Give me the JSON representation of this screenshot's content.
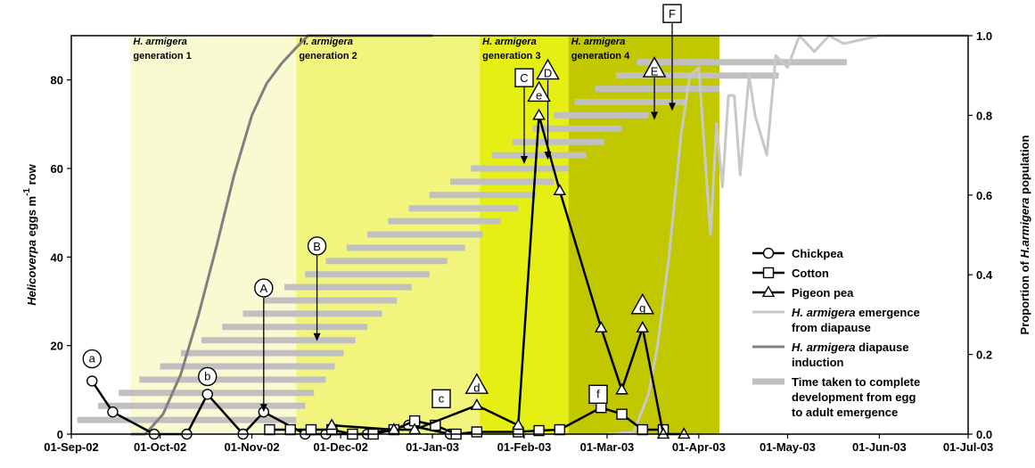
{
  "chart_data": {
    "type": "line",
    "x_axis": {
      "type": "date",
      "range": [
        "2002-09-01",
        "2003-07-01"
      ],
      "ticks": [
        "01-Sep-02",
        "01-Oct-02",
        "01-Nov-02",
        "01-Dec-02",
        "01-Jan-03",
        "01-Feb-03",
        "01-Mar-03",
        "01-Apr-03",
        "01-May-03",
        "01-Jun-03",
        "01-Jul-03"
      ]
    },
    "y_left": {
      "label_main": "Helicoverpa",
      "label_rest": " eggs m",
      "label_sup": "-1",
      "label_end": " row",
      "range": [
        0,
        90
      ],
      "ticks": [
        "0",
        "20",
        "40",
        "60",
        "80"
      ]
    },
    "y_right": {
      "label_pre": "Proportion of ",
      "label_italic": "H.armigera",
      "label_post": " population",
      "range": [
        0,
        1.0
      ],
      "ticks": [
        "0.0",
        "0.2",
        "0.4",
        "0.6",
        "0.8",
        "1.0"
      ]
    },
    "generations": [
      {
        "species": "H. armigera",
        "label": "generation 1",
        "start": "2002-09-21",
        "end": "2002-11-16",
        "color": "#fafad2"
      },
      {
        "species": "H. armigera",
        "label": "generation 2",
        "start": "2002-11-16",
        "end": "2003-01-17",
        "color": "#f1f57e"
      },
      {
        "species": "H. armigera",
        "label": "generation 3",
        "start": "2003-01-17",
        "end": "2003-02-16",
        "color": "#e6ef14"
      },
      {
        "species": "H. armigera",
        "label": "generation 4",
        "start": "2003-02-16",
        "end": "2003-04-08",
        "color": "#c2c800"
      }
    ],
    "series": [
      {
        "name": "Chickpea",
        "marker": "circle",
        "color": "#000000",
        "points": [
          [
            "2002-09-08",
            12
          ],
          [
            "2002-09-15",
            5
          ],
          [
            "2002-09-29",
            0
          ],
          [
            "2002-10-10",
            0
          ],
          [
            "2002-10-17",
            9
          ],
          [
            "2002-10-29",
            0
          ],
          [
            "2002-11-05",
            5
          ],
          [
            "2002-11-19",
            0
          ],
          [
            "2002-11-26",
            0
          ],
          [
            "2002-12-10",
            0
          ],
          [
            "2002-12-24",
            2
          ],
          [
            "2003-01-07",
            0
          ]
        ]
      },
      {
        "name": "Cotton",
        "marker": "square",
        "color": "#000000",
        "points": [
          [
            "2002-11-07",
            1
          ],
          [
            "2002-11-14",
            1
          ],
          [
            "2002-11-21",
            1
          ],
          [
            "2002-11-28",
            1
          ],
          [
            "2002-12-05",
            0
          ],
          [
            "2002-12-12",
            0
          ],
          [
            "2002-12-19",
            1
          ],
          [
            "2002-12-26",
            3
          ],
          [
            "2003-01-02",
            2
          ],
          [
            "2003-01-09",
            0
          ],
          [
            "2003-01-16",
            0.5
          ],
          [
            "2003-01-30",
            0.5
          ],
          [
            "2003-02-06",
            0.8
          ],
          [
            "2003-02-13",
            1
          ],
          [
            "2003-02-27",
            6
          ],
          [
            "2003-03-06",
            4.5
          ],
          [
            "2003-03-13",
            1
          ],
          [
            "2003-03-20",
            1
          ]
        ]
      },
      {
        "name": "Pigeon pea",
        "marker": "triangle",
        "color": "#000000",
        "points": [
          [
            "2002-11-28",
            2
          ],
          [
            "2002-12-19",
            1
          ],
          [
            "2002-12-26",
            1
          ],
          [
            "2003-01-16",
            6.5
          ],
          [
            "2003-01-30",
            2
          ],
          [
            "2003-02-06",
            72
          ],
          [
            "2003-02-13",
            55
          ],
          [
            "2003-02-27",
            24
          ],
          [
            "2003-03-06",
            10
          ],
          [
            "2003-03-13",
            24
          ],
          [
            "2003-03-20",
            0
          ],
          [
            "2003-03-27",
            0
          ]
        ]
      }
    ],
    "proportion_series": [
      {
        "name": "H. armigera emergence from diapause",
        "color": "#c8c8c8",
        "points": [
          [
            "2003-03-01",
            0
          ],
          [
            "2003-03-10",
            0.005
          ],
          [
            "2003-03-15",
            0.1
          ],
          [
            "2003-03-18",
            0.22
          ],
          [
            "2003-03-22",
            0.45
          ],
          [
            "2003-03-26",
            0.75
          ],
          [
            "2003-03-29",
            0.9
          ],
          [
            "2003-04-01",
            0.92
          ],
          [
            "2003-04-04",
            0.6
          ],
          [
            "2003-04-05",
            0.5
          ],
          [
            "2003-04-07",
            0.78
          ],
          [
            "2003-04-09",
            0.62
          ],
          [
            "2003-04-11",
            0.85
          ],
          [
            "2003-04-13",
            0.85
          ],
          [
            "2003-04-15",
            0.65
          ],
          [
            "2003-04-18",
            0.9
          ],
          [
            "2003-04-20",
            0.8
          ],
          [
            "2003-04-24",
            0.7
          ],
          [
            "2003-04-27",
            0.95
          ],
          [
            "2003-05-01",
            0.92
          ],
          [
            "2003-05-05",
            1.0
          ],
          [
            "2003-05-10",
            0.96
          ],
          [
            "2003-05-15",
            1.0
          ],
          [
            "2003-05-20",
            0.98
          ],
          [
            "2003-06-01",
            1.0
          ],
          [
            "2003-07-01",
            1.0
          ]
        ]
      },
      {
        "name": "H. armigera diapause induction",
        "color": "#808080",
        "points": [
          [
            "2002-09-21",
            0
          ],
          [
            "2002-09-26",
            0
          ],
          [
            "2002-10-02",
            0.05
          ],
          [
            "2002-10-08",
            0.15
          ],
          [
            "2002-10-14",
            0.3
          ],
          [
            "2002-10-20",
            0.47
          ],
          [
            "2002-10-26",
            0.65
          ],
          [
            "2002-11-01",
            0.8
          ],
          [
            "2002-11-06",
            0.88
          ],
          [
            "2002-11-11",
            0.93
          ],
          [
            "2002-11-16",
            0.97
          ],
          [
            "2002-11-20",
            1.0
          ],
          [
            "2003-01-01",
            1.0
          ]
        ]
      }
    ],
    "development_bars": {
      "name": "Time taken to complete development from egg to adult emergence",
      "color": "#c0c0c0",
      "bars": [
        {
          "start": "2002-09-03",
          "end": "2002-11-16",
          "y": 3.2
        },
        {
          "start": "2002-09-10",
          "end": "2002-11-19",
          "y": 6.4
        },
        {
          "start": "2002-09-17",
          "end": "2002-11-22",
          "y": 9.3
        },
        {
          "start": "2002-09-24",
          "end": "2002-11-26",
          "y": 12.3
        },
        {
          "start": "2002-10-01",
          "end": "2002-11-29",
          "y": 15.3
        },
        {
          "start": "2002-10-08",
          "end": "2002-12-02",
          "y": 18.3
        },
        {
          "start": "2002-10-15",
          "end": "2002-12-06",
          "y": 21.2
        },
        {
          "start": "2002-10-22",
          "end": "2002-12-10",
          "y": 24.2
        },
        {
          "start": "2002-10-29",
          "end": "2002-12-15",
          "y": 27.2
        },
        {
          "start": "2002-11-05",
          "end": "2002-12-20",
          "y": 30.2
        },
        {
          "start": "2002-11-12",
          "end": "2002-12-25",
          "y": 33.2
        },
        {
          "start": "2002-11-19",
          "end": "2002-12-31",
          "y": 36.1
        },
        {
          "start": "2002-11-26",
          "end": "2003-01-06",
          "y": 39.1
        },
        {
          "start": "2002-12-03",
          "end": "2003-01-12",
          "y": 42.1
        },
        {
          "start": "2002-12-10",
          "end": "2003-01-18",
          "y": 45.1
        },
        {
          "start": "2002-12-17",
          "end": "2003-01-24",
          "y": 48.1
        },
        {
          "start": "2002-12-24",
          "end": "2003-01-30",
          "y": 51.0
        },
        {
          "start": "2002-12-31",
          "end": "2003-02-05",
          "y": 54.0
        },
        {
          "start": "2003-01-07",
          "end": "2003-02-11",
          "y": 57.0
        },
        {
          "start": "2003-01-14",
          "end": "2003-02-16",
          "y": 60.0
        },
        {
          "start": "2003-01-21",
          "end": "2003-02-22",
          "y": 63.0
        },
        {
          "start": "2003-01-28",
          "end": "2003-02-28",
          "y": 66.0
        },
        {
          "start": "2003-02-04",
          "end": "2003-03-06",
          "y": 69.0
        },
        {
          "start": "2003-02-11",
          "end": "2003-03-15",
          "y": 72.0
        },
        {
          "start": "2003-02-18",
          "end": "2003-03-28",
          "y": 75.0
        },
        {
          "start": "2003-02-25",
          "end": "2003-04-08",
          "y": 78.0
        },
        {
          "start": "2003-03-04",
          "end": "2003-04-28",
          "y": 81.0
        },
        {
          "start": "2003-03-11",
          "end": "2003-05-21",
          "y": 84.0
        }
      ]
    },
    "annotations": [
      {
        "text": "a",
        "shape": "circle",
        "x": "2002-09-08",
        "y": 17
      },
      {
        "text": "b",
        "shape": "circle",
        "x": "2002-10-17",
        "y": 13
      },
      {
        "text": "c",
        "shape": "square",
        "x": "2003-01-04",
        "y": 8
      },
      {
        "text": "d",
        "shape": "triangle",
        "x": "2003-01-16",
        "y": 11
      },
      {
        "text": "e",
        "shape": "triangle",
        "x": "2003-02-06",
        "y": 77
      },
      {
        "text": "f",
        "shape": "square",
        "x": "2003-02-26",
        "y": 9
      },
      {
        "text": "g",
        "shape": "triangle",
        "x": "2003-03-13",
        "y": 29
      }
    ],
    "events": [
      {
        "text": "A",
        "shape": "circle",
        "x": "2002-11-05",
        "label_y": 33,
        "arrow_to_y": 5
      },
      {
        "text": "B",
        "shape": "circle",
        "x": "2002-11-23",
        "label_y": 42.5,
        "arrow_to_y": 21
      },
      {
        "text": "C",
        "shape": "square",
        "x": "2003-02-01",
        "label_y": 80.5,
        "arrow_to_y": 61
      },
      {
        "text": "D",
        "shape": "triangle",
        "x": "2003-02-09",
        "label_y": 82,
        "arrow_to_y": 62
      },
      {
        "text": "E",
        "shape": "triangle",
        "x": "2003-03-17",
        "label_y": 82.5,
        "arrow_to_y": 71
      },
      {
        "text": "F",
        "shape": "square",
        "x": "2003-03-23",
        "label_y": 95,
        "arrow_to_y": 73
      }
    ],
    "legend": {
      "placement": "right",
      "entries": [
        {
          "type": "series",
          "marker": "circle",
          "lines": [
            [
              {
                "t": "Chickpea",
                "i": false
              }
            ]
          ]
        },
        {
          "type": "series",
          "marker": "square",
          "lines": [
            [
              {
                "t": "Cotton",
                "i": false
              }
            ]
          ]
        },
        {
          "type": "series",
          "marker": "triangle",
          "lines": [
            [
              {
                "t": "Pigeon pea",
                "i": false
              }
            ]
          ]
        },
        {
          "type": "line",
          "color": "#c8c8c8",
          "lines": [
            [
              {
                "t": "H. armigera",
                "i": true
              },
              {
                "t": " emergence",
                "i": false
              }
            ],
            [
              {
                "t": "from diapause",
                "i": false
              }
            ]
          ]
        },
        {
          "type": "line",
          "color": "#808080",
          "lines": [
            [
              {
                "t": "H. armigera",
                "i": true
              },
              {
                "t": " diapause",
                "i": false
              }
            ],
            [
              {
                "t": "induction",
                "i": false
              }
            ]
          ]
        },
        {
          "type": "bar",
          "color": "#c0c0c0",
          "lines": [
            [
              {
                "t": "Time taken to complete",
                "i": false
              }
            ],
            [
              {
                "t": "development from egg",
                "i": false
              }
            ],
            [
              {
                "t": "to adult emergence",
                "i": false
              }
            ]
          ]
        }
      ]
    }
  }
}
